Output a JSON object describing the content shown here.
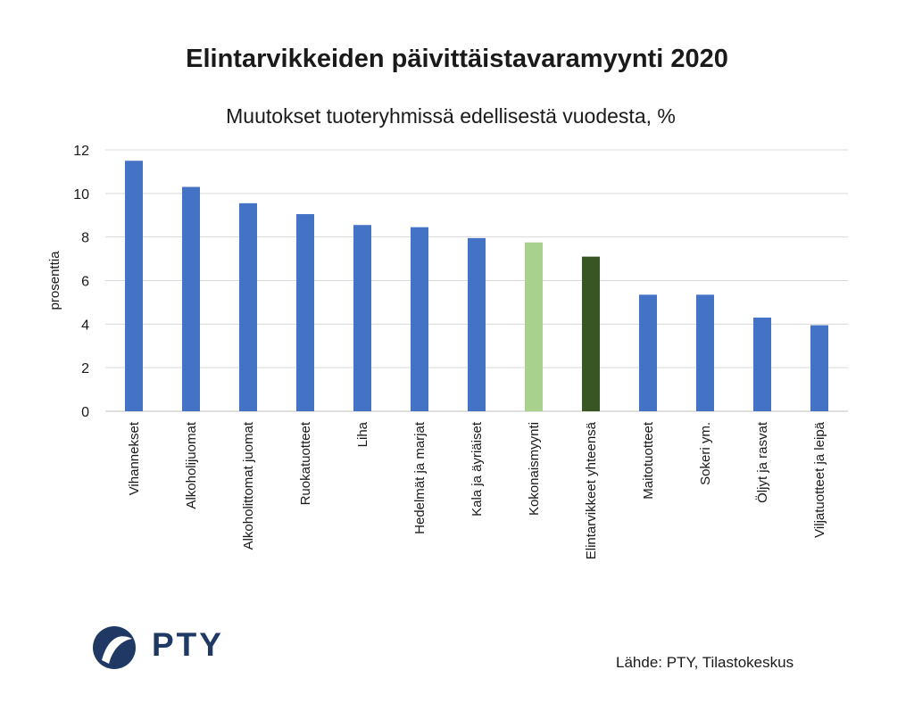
{
  "chart_data": {
    "type": "bar",
    "title": "Elintarvikkeiden päivittäistavaramyynti 2020",
    "subtitle": "Muutokset tuoteryhmissä edellisestä vuodesta, %",
    "ylabel": "prosenttia",
    "xlabel": "",
    "ylim": [
      0,
      12
    ],
    "yticks": [
      0,
      2,
      4,
      6,
      8,
      10,
      12
    ],
    "grid": true,
    "categories": [
      "Vihannekset",
      "Alkoholijuomat",
      "Alkoholittomat juomat",
      "Ruokatuotteet",
      "Liha",
      "Hedelmät ja marjat",
      "Kala ja äyriäiset",
      "Kokonaismyynti",
      "Elintarvikkeet yhteensä",
      "Maitotuotteet",
      "Sokeri ym.",
      "Öljyt ja rasvat",
      "Viljatuotteet ja leipä"
    ],
    "values": [
      11.5,
      10.3,
      9.55,
      9.05,
      8.55,
      8.45,
      7.95,
      7.75,
      7.1,
      5.35,
      5.35,
      4.3,
      3.95
    ],
    "bar_colors": [
      "#4472c4",
      "#4472c4",
      "#4472c4",
      "#4472c4",
      "#4472c4",
      "#4472c4",
      "#4472c4",
      "#a9d18e",
      "#375623",
      "#4472c4",
      "#4472c4",
      "#4472c4",
      "#4472c4"
    ]
  },
  "colors": {
    "grid": "#d9d9d9",
    "axis": "#bfbfbf",
    "logo": "#1f3864"
  },
  "logo": {
    "text": "PTY",
    "icon": "pty-logo-icon"
  },
  "source": "Lähde: PTY, Tilastokeskus"
}
